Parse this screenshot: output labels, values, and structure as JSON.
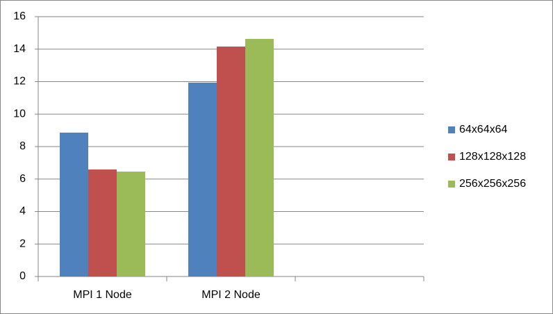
{
  "chart_data": {
    "type": "bar",
    "categories": [
      "MPI 1 Node",
      "MPI 2 Node",
      null
    ],
    "series": [
      {
        "name": "64x64x64",
        "color": "#4f81bd",
        "values": [
          8.86,
          11.94,
          null
        ]
      },
      {
        "name": "128x128x128",
        "color": "#c0504d",
        "values": [
          6.59,
          14.16,
          null
        ]
      },
      {
        "name": "256x256x256",
        "color": "#9bbb59",
        "values": [
          6.46,
          14.63,
          null
        ]
      }
    ],
    "ylim": [
      0,
      16
    ],
    "yticks": [
      0,
      2,
      4,
      6,
      8,
      10,
      12,
      14,
      16
    ],
    "grid": true,
    "legend": "right"
  }
}
